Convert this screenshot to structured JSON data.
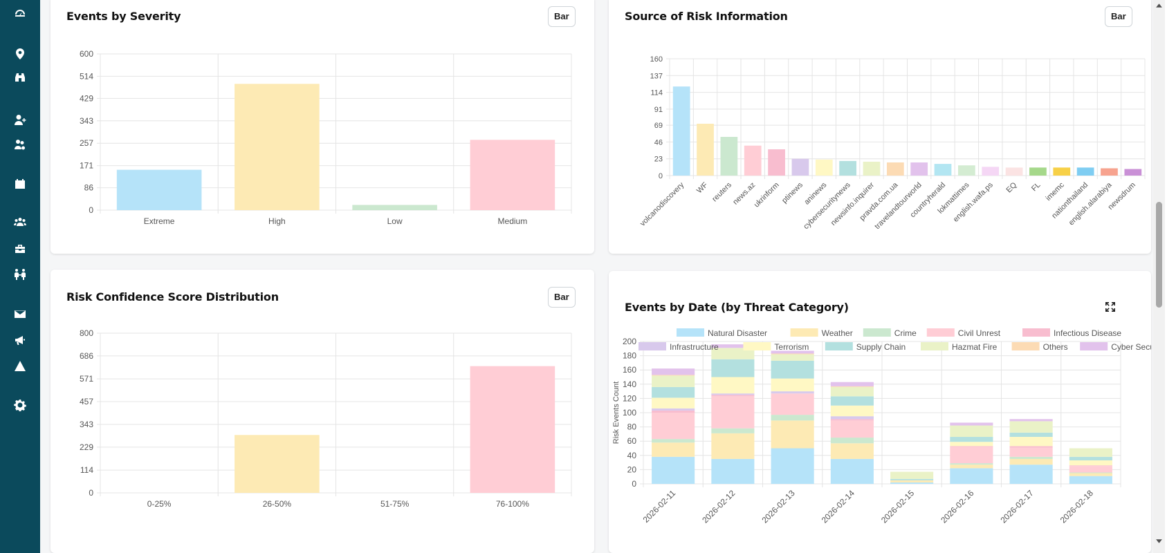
{
  "sidebar": {
    "icons": [
      "dashboard-icon",
      "location-pin-icon",
      "binoculars-icon",
      "user-add-icon",
      "users-cog-icon",
      "calendar-icon",
      "team-icon",
      "toolbox-icon",
      "people-arrows-icon",
      "mail-icon",
      "megaphone-icon",
      "warning-icon",
      "settings-icon"
    ]
  },
  "cards": {
    "severity": {
      "title": "Events by Severity",
      "button": "Bar"
    },
    "source": {
      "title": "Source of Risk Information",
      "button": "Bar"
    },
    "confidence": {
      "title": "Risk Confidence Score Distribution",
      "button": "Bar"
    },
    "bydate": {
      "title": "Events by Date (by Threat Category)",
      "expand_icon": "expand-icon"
    }
  },
  "colors": {
    "blue": "#b5e3f9",
    "yellow": "#fdeab4",
    "green": "#cbe8cf",
    "pink": "#ffcdd5",
    "rose": "#f8bdcf",
    "lavender": "#d8c9ec",
    "cream": "#fff8c4",
    "teal": "#b3e0df",
    "lime": "#eaf2c7",
    "peach": "#fcdbb4",
    "violet": "#e2c2ec"
  },
  "chart_data": [
    {
      "id": "severity",
      "type": "bar",
      "categories": [
        "Extreme",
        "High",
        "Low",
        "Medium"
      ],
      "values": [
        155,
        485,
        20,
        270
      ],
      "yticks": [
        0,
        86,
        171,
        257,
        343,
        429,
        514,
        600
      ],
      "ylim": [
        0,
        600
      ],
      "colors": [
        "#b5e3f9",
        "#fdeab4",
        "#cbe8cf",
        "#ffcdd5"
      ],
      "grid": true
    },
    {
      "id": "source",
      "type": "bar",
      "categories": [
        "volcanodiscovery",
        "WF",
        "reuters",
        "news.az",
        "ukrinform",
        "ptinews",
        "aninews",
        "cybersecuritynews",
        "newsinfo.inquirer",
        "pravda.com.ua",
        "travelandtourworld",
        "countryherald",
        "lokmattimes",
        "english.wafa.ps",
        "EQ",
        "FL",
        "imemc",
        "nationthailand",
        "english.alarabiya",
        "newsdrum"
      ],
      "values": [
        122,
        71,
        53,
        41,
        36,
        23,
        22,
        20,
        19,
        18,
        18,
        16,
        14,
        12,
        11,
        11,
        11,
        11,
        10,
        9
      ],
      "yticks": [
        0,
        23,
        46,
        69,
        91,
        114,
        137,
        160
      ],
      "ylim": [
        0,
        160
      ],
      "colors": [
        "#b5e3f9",
        "#fdeab4",
        "#cbe8cf",
        "#ffcdd5",
        "#f8bdcf",
        "#d8c9ec",
        "#fff8c4",
        "#b3e0df",
        "#eaf2c7",
        "#fcdbb4",
        "#e2c2ec",
        "#b3e6f2",
        "#d4ecd2",
        "#f5d7f5",
        "#fbe3e3",
        "#a5d88a",
        "#f7d047",
        "#7fcdf2",
        "#f7a38f",
        "#c990d6"
      ],
      "grid": true
    },
    {
      "id": "confidence",
      "type": "bar",
      "categories": [
        "0-25%",
        "26-50%",
        "51-75%",
        "76-100%"
      ],
      "values": [
        0,
        290,
        0,
        635
      ],
      "yticks": [
        0,
        114,
        229,
        343,
        457,
        571,
        686,
        800
      ],
      "ylim": [
        0,
        800
      ],
      "colors": [
        "#b5e3f9",
        "#fdeab4",
        "#cbe8cf",
        "#ffcdd5"
      ],
      "grid": true
    },
    {
      "id": "bydate",
      "type": "bar",
      "stacked": true,
      "ylabel": "Risk Events Count",
      "categories": [
        "2026-02-11",
        "2026-02-12",
        "2026-02-13",
        "2026-02-14",
        "2026-02-15",
        "2026-02-16",
        "2026-02-17",
        "2026-02-18"
      ],
      "yticks": [
        0,
        20,
        40,
        60,
        80,
        100,
        120,
        140,
        160,
        180,
        200
      ],
      "ylim": [
        0,
        200
      ],
      "legend": "top",
      "grid": true,
      "series": [
        {
          "name": "Natural Disaster",
          "color": "#b5e3f9",
          "values": [
            38,
            35,
            50,
            35,
            2,
            22,
            27,
            11
          ]
        },
        {
          "name": "Weather",
          "color": "#fdeab4",
          "values": [
            20,
            36,
            39,
            22,
            3,
            5,
            8,
            4
          ]
        },
        {
          "name": "Crime",
          "color": "#cbe8cf",
          "values": [
            5,
            7,
            8,
            8,
            0,
            2,
            3,
            1
          ]
        },
        {
          "name": "Civil Unrest",
          "color": "#ffcdd5",
          "values": [
            37,
            45,
            30,
            24,
            0,
            23,
            13,
            9
          ]
        },
        {
          "name": "Infectious Disease",
          "color": "#f8bdcf",
          "values": [
            3,
            2,
            0,
            2,
            0,
            1,
            2,
            1
          ]
        },
        {
          "name": "Infrastructure",
          "color": "#d8c9ec",
          "values": [
            3,
            2,
            3,
            4,
            0,
            0,
            0,
            0
          ]
        },
        {
          "name": "Terrorism",
          "color": "#fff8c4",
          "values": [
            15,
            23,
            18,
            15,
            0,
            6,
            13,
            7
          ]
        },
        {
          "name": "Supply Chain",
          "color": "#b3e0df",
          "values": [
            15,
            25,
            25,
            13,
            2,
            7,
            6,
            5
          ]
        },
        {
          "name": "Hazmat Fire",
          "color": "#eaf2c7",
          "values": [
            16,
            16,
            9,
            13,
            10,
            16,
            16,
            12
          ]
        },
        {
          "name": "Others",
          "color": "#fcdbb4",
          "values": [
            1,
            0,
            1,
            1,
            0,
            0,
            0,
            0
          ]
        },
        {
          "name": "Cyber Security",
          "color": "#e2c2ec",
          "values": [
            9,
            5,
            4,
            6,
            0,
            4,
            3,
            0
          ]
        }
      ]
    }
  ]
}
